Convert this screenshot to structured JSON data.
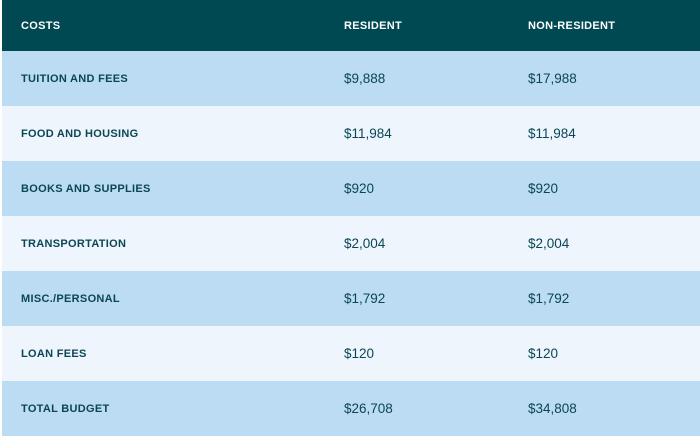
{
  "header": {
    "costs": "COSTS",
    "resident": "RESIDENT",
    "non_resident": "NON-RESIDENT"
  },
  "colors": {
    "header_bg": "#004852",
    "row_dark": "#bcdcf4",
    "row_light": "#eef5fd",
    "text": "#0a4654"
  },
  "rows": [
    {
      "label": "TUITION AND FEES",
      "resident": "$9,888",
      "non_resident": "$17,988"
    },
    {
      "label": "FOOD AND HOUSING",
      "resident": "$11,984",
      "non_resident": "$11,984"
    },
    {
      "label": "BOOKS AND SUPPLIES",
      "resident": "$920",
      "non_resident": "$920"
    },
    {
      "label": "TRANSPORTATION",
      "resident": "$2,004",
      "non_resident": "$2,004"
    },
    {
      "label": "MISC./PERSONAL",
      "resident": "$1,792",
      "non_resident": "$1,792"
    },
    {
      "label": "LOAN FEES",
      "resident": "$120",
      "non_resident": "$120"
    },
    {
      "label": "TOTAL BUDGET",
      "resident": "$26,708",
      "non_resident": "$34,808"
    }
  ]
}
